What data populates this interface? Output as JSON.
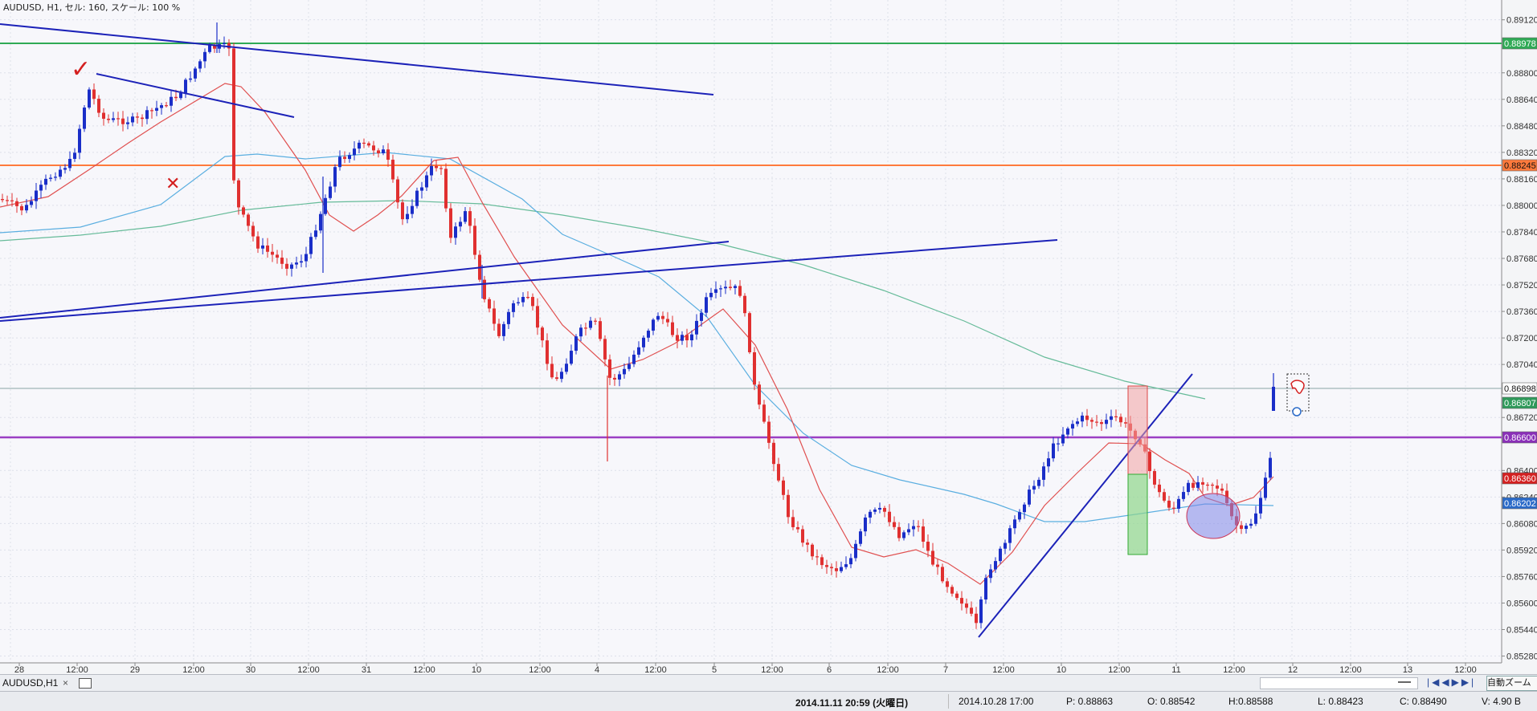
{
  "header": {
    "title": "AUDUSD, H1, セル: 160, スケール: 100 %"
  },
  "chart": {
    "price_axis": [
      "0.89120",
      "0.88800",
      "0.88640",
      "0.88480",
      "0.88320",
      "0.88160",
      "0.88000",
      "0.87840",
      "0.87680",
      "0.87520",
      "0.87360",
      "0.87200",
      "0.87040",
      "0.86720",
      "0.86400",
      "0.86240",
      "0.86080",
      "0.85920",
      "0.85760",
      "0.85600",
      "0.85440",
      "0.85280"
    ],
    "time_axis": [
      "28",
      "12:00",
      "29",
      "12:00",
      "30",
      "12:00",
      "31",
      "12:00",
      "10",
      "12:00",
      "4",
      "12:00",
      "5",
      "12:00",
      "6",
      "12:00",
      "7",
      "12:00",
      "10",
      "12:00",
      "11",
      "12:00",
      "12",
      "12:00",
      "13",
      "12:00"
    ],
    "price_tags": {
      "green": "0.88978",
      "orange": "0.88245",
      "bid": "0.86898",
      "ma_green": "0.86807",
      "purple": "0.86600",
      "ma_red": "0.86360",
      "ma_blue": "0.86202"
    },
    "colors": {
      "green_level": "#2faa55",
      "orange_level": "#ff7a3c",
      "purple_level": "#9b3fc4",
      "trend_line": "#1c22b8",
      "bull_candle": "#1a2ec8",
      "bear_candle": "#e03030",
      "ma_red": "#e05050",
      "ma_blue": "#5aaee0",
      "ma_green": "#66bb99"
    },
    "annotations": {
      "check_mark": "✓",
      "cross_mark": "✕"
    }
  },
  "tabs": [
    {
      "label": "AUDUSD,H1",
      "close": "×"
    }
  ],
  "toolbar": {
    "zoom_label": "自動ズーム"
  },
  "status": {
    "datetime": "2014.11.11 20:59 (火曜日)",
    "bar_time": "2014.10.28 17:00",
    "p": "P: 0.88863",
    "o": "O: 0.88542",
    "h": "H:0.88588",
    "l": "L: 0.88423",
    "c": "C: 0.88490",
    "v": "V: 4.90 B"
  }
}
